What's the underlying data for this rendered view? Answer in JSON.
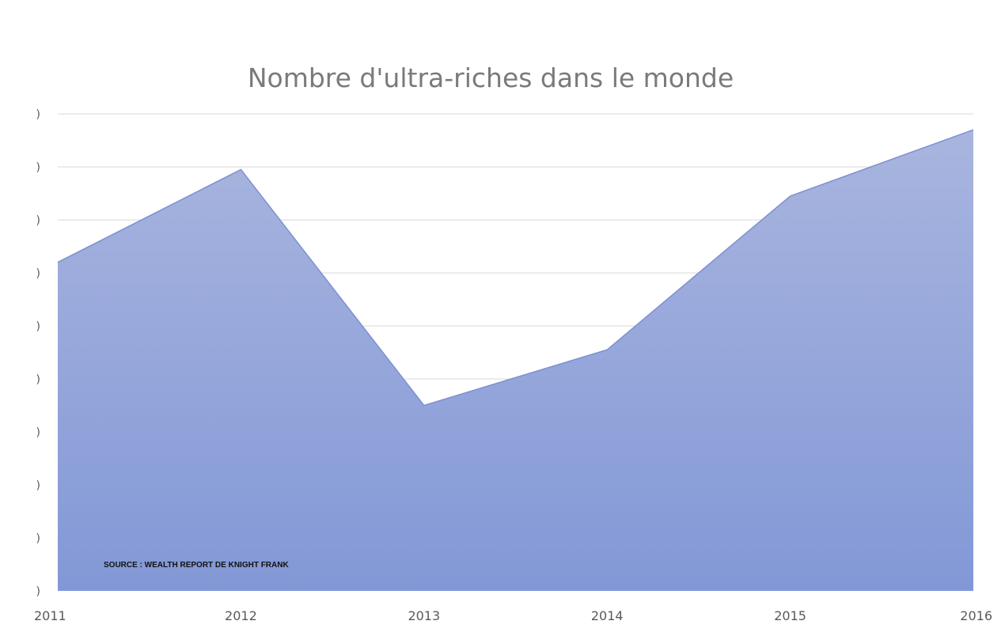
{
  "chart_data": {
    "type": "area",
    "title": "Nombre d'ultra-riches dans le monde",
    "xlabel": "",
    "ylabel": "",
    "categories": [
      "2011",
      "2012",
      "2013",
      "2014",
      "2015",
      "2016"
    ],
    "series": [
      {
        "values": [
          6.2,
          7.95,
          3.5,
          4.55,
          7.45,
          8.7
        ]
      }
    ],
    "ylim": [
      0,
      9
    ],
    "y_ticks": [
      0,
      1,
      2,
      3,
      4,
      5,
      6,
      7,
      8,
      9
    ],
    "y_tick_labels": [
      ")",
      ")",
      ")",
      ")",
      ")",
      ")",
      ")",
      ")",
      ")",
      ")"
    ],
    "grid": true,
    "legend": "none",
    "annotation": "SOURCE : WEALTH REPORT DE KNIGHT FRANK",
    "colors": {
      "fill_top": "#a9b5df",
      "fill_bottom": "#8298d6",
      "stroke": "#7d91cf"
    }
  }
}
